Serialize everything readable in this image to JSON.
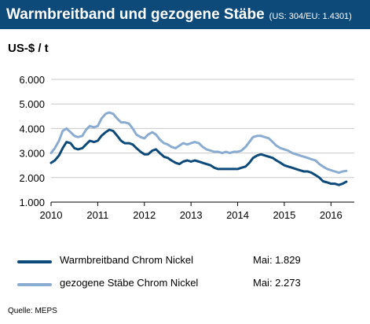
{
  "header": {
    "title": "Warmbreitband und gezogene Stäbe",
    "subtitle": "(US: 304/EU: 1.4301)"
  },
  "chart_data": {
    "type": "line",
    "ylabel": "US-$ / t",
    "ylim": [
      1000,
      6000
    ],
    "xlim": [
      2010,
      2016.5
    ],
    "yticks": [
      "6.000",
      "5.000",
      "4.000",
      "3.000",
      "2.000",
      "1.000"
    ],
    "ytick_values": [
      6000,
      5000,
      4000,
      3000,
      2000,
      1000
    ],
    "xticks": [
      "2010",
      "2011",
      "2012",
      "2013",
      "2014",
      "2015",
      "2016"
    ],
    "xtick_values": [
      2010,
      2011,
      2012,
      2013,
      2014,
      2015,
      2016
    ],
    "grid": true,
    "legend_position": "bottom",
    "series": [
      {
        "name": "Warmbreitband Chrom Nickel",
        "color": "#0d4a7a",
        "legend_value": "Mai: 1.829",
        "points": [
          [
            2010.0,
            2600
          ],
          [
            2010.08,
            2700
          ],
          [
            2010.17,
            2900
          ],
          [
            2010.25,
            3200
          ],
          [
            2010.33,
            3450
          ],
          [
            2010.42,
            3400
          ],
          [
            2010.5,
            3200
          ],
          [
            2010.58,
            3150
          ],
          [
            2010.67,
            3200
          ],
          [
            2010.75,
            3350
          ],
          [
            2010.83,
            3500
          ],
          [
            2010.92,
            3450
          ],
          [
            2011.0,
            3500
          ],
          [
            2011.08,
            3700
          ],
          [
            2011.17,
            3850
          ],
          [
            2011.25,
            3950
          ],
          [
            2011.33,
            3900
          ],
          [
            2011.42,
            3700
          ],
          [
            2011.5,
            3500
          ],
          [
            2011.58,
            3400
          ],
          [
            2011.67,
            3400
          ],
          [
            2011.75,
            3350
          ],
          [
            2011.83,
            3200
          ],
          [
            2011.92,
            3050
          ],
          [
            2012.0,
            2950
          ],
          [
            2012.08,
            2950
          ],
          [
            2012.17,
            3100
          ],
          [
            2012.25,
            3150
          ],
          [
            2012.33,
            3000
          ],
          [
            2012.42,
            2850
          ],
          [
            2012.5,
            2800
          ],
          [
            2012.58,
            2700
          ],
          [
            2012.67,
            2600
          ],
          [
            2012.75,
            2550
          ],
          [
            2012.83,
            2650
          ],
          [
            2012.92,
            2700
          ],
          [
            2013.0,
            2650
          ],
          [
            2013.08,
            2700
          ],
          [
            2013.17,
            2650
          ],
          [
            2013.25,
            2600
          ],
          [
            2013.33,
            2550
          ],
          [
            2013.42,
            2500
          ],
          [
            2013.5,
            2400
          ],
          [
            2013.58,
            2350
          ],
          [
            2013.67,
            2350
          ],
          [
            2013.75,
            2350
          ],
          [
            2013.83,
            2350
          ],
          [
            2013.92,
            2350
          ],
          [
            2014.0,
            2350
          ],
          [
            2014.08,
            2400
          ],
          [
            2014.17,
            2450
          ],
          [
            2014.25,
            2600
          ],
          [
            2014.33,
            2800
          ],
          [
            2014.42,
            2900
          ],
          [
            2014.5,
            2950
          ],
          [
            2014.58,
            2900
          ],
          [
            2014.67,
            2850
          ],
          [
            2014.75,
            2800
          ],
          [
            2014.83,
            2700
          ],
          [
            2014.92,
            2600
          ],
          [
            2015.0,
            2500
          ],
          [
            2015.08,
            2450
          ],
          [
            2015.17,
            2400
          ],
          [
            2015.25,
            2350
          ],
          [
            2015.33,
            2300
          ],
          [
            2015.42,
            2250
          ],
          [
            2015.5,
            2250
          ],
          [
            2015.58,
            2200
          ],
          [
            2015.67,
            2100
          ],
          [
            2015.75,
            2000
          ],
          [
            2015.83,
            1850
          ],
          [
            2015.92,
            1800
          ],
          [
            2016.0,
            1750
          ],
          [
            2016.08,
            1750
          ],
          [
            2016.17,
            1700
          ],
          [
            2016.25,
            1750
          ],
          [
            2016.33,
            1829
          ]
        ]
      },
      {
        "name": "gezogene Stäbe Chrom Nickel",
        "color": "#8bacd1",
        "legend_value": "Mai: 2.273",
        "points": [
          [
            2010.0,
            3000
          ],
          [
            2010.08,
            3200
          ],
          [
            2010.17,
            3500
          ],
          [
            2010.25,
            3900
          ],
          [
            2010.33,
            4000
          ],
          [
            2010.42,
            3850
          ],
          [
            2010.5,
            3700
          ],
          [
            2010.58,
            3650
          ],
          [
            2010.67,
            3700
          ],
          [
            2010.75,
            3950
          ],
          [
            2010.83,
            4100
          ],
          [
            2010.92,
            4050
          ],
          [
            2011.0,
            4100
          ],
          [
            2011.08,
            4400
          ],
          [
            2011.17,
            4600
          ],
          [
            2011.25,
            4650
          ],
          [
            2011.33,
            4600
          ],
          [
            2011.42,
            4400
          ],
          [
            2011.5,
            4250
          ],
          [
            2011.58,
            4250
          ],
          [
            2011.67,
            4200
          ],
          [
            2011.75,
            4000
          ],
          [
            2011.83,
            3750
          ],
          [
            2011.92,
            3650
          ],
          [
            2012.0,
            3600
          ],
          [
            2012.08,
            3750
          ],
          [
            2012.17,
            3850
          ],
          [
            2012.25,
            3750
          ],
          [
            2012.33,
            3550
          ],
          [
            2012.42,
            3400
          ],
          [
            2012.5,
            3350
          ],
          [
            2012.58,
            3250
          ],
          [
            2012.67,
            3200
          ],
          [
            2012.75,
            3300
          ],
          [
            2012.83,
            3400
          ],
          [
            2012.92,
            3350
          ],
          [
            2013.0,
            3400
          ],
          [
            2013.08,
            3450
          ],
          [
            2013.17,
            3400
          ],
          [
            2013.25,
            3250
          ],
          [
            2013.33,
            3150
          ],
          [
            2013.42,
            3100
          ],
          [
            2013.5,
            3050
          ],
          [
            2013.58,
            3050
          ],
          [
            2013.67,
            3000
          ],
          [
            2013.75,
            3050
          ],
          [
            2013.83,
            3000
          ],
          [
            2013.92,
            3050
          ],
          [
            2014.0,
            3050
          ],
          [
            2014.08,
            3100
          ],
          [
            2014.17,
            3250
          ],
          [
            2014.25,
            3450
          ],
          [
            2014.33,
            3650
          ],
          [
            2014.42,
            3700
          ],
          [
            2014.5,
            3700
          ],
          [
            2014.58,
            3650
          ],
          [
            2014.67,
            3600
          ],
          [
            2014.75,
            3450
          ],
          [
            2014.83,
            3300
          ],
          [
            2014.92,
            3200
          ],
          [
            2015.0,
            3150
          ],
          [
            2015.08,
            3100
          ],
          [
            2015.17,
            3000
          ],
          [
            2015.25,
            2950
          ],
          [
            2015.33,
            2900
          ],
          [
            2015.42,
            2850
          ],
          [
            2015.5,
            2800
          ],
          [
            2015.58,
            2750
          ],
          [
            2015.67,
            2700
          ],
          [
            2015.75,
            2550
          ],
          [
            2015.83,
            2450
          ],
          [
            2015.92,
            2350
          ],
          [
            2016.0,
            2300
          ],
          [
            2016.08,
            2250
          ],
          [
            2016.17,
            2200
          ],
          [
            2016.25,
            2250
          ],
          [
            2016.33,
            2273
          ]
        ]
      }
    ]
  },
  "source": "Quelle: MEPS"
}
